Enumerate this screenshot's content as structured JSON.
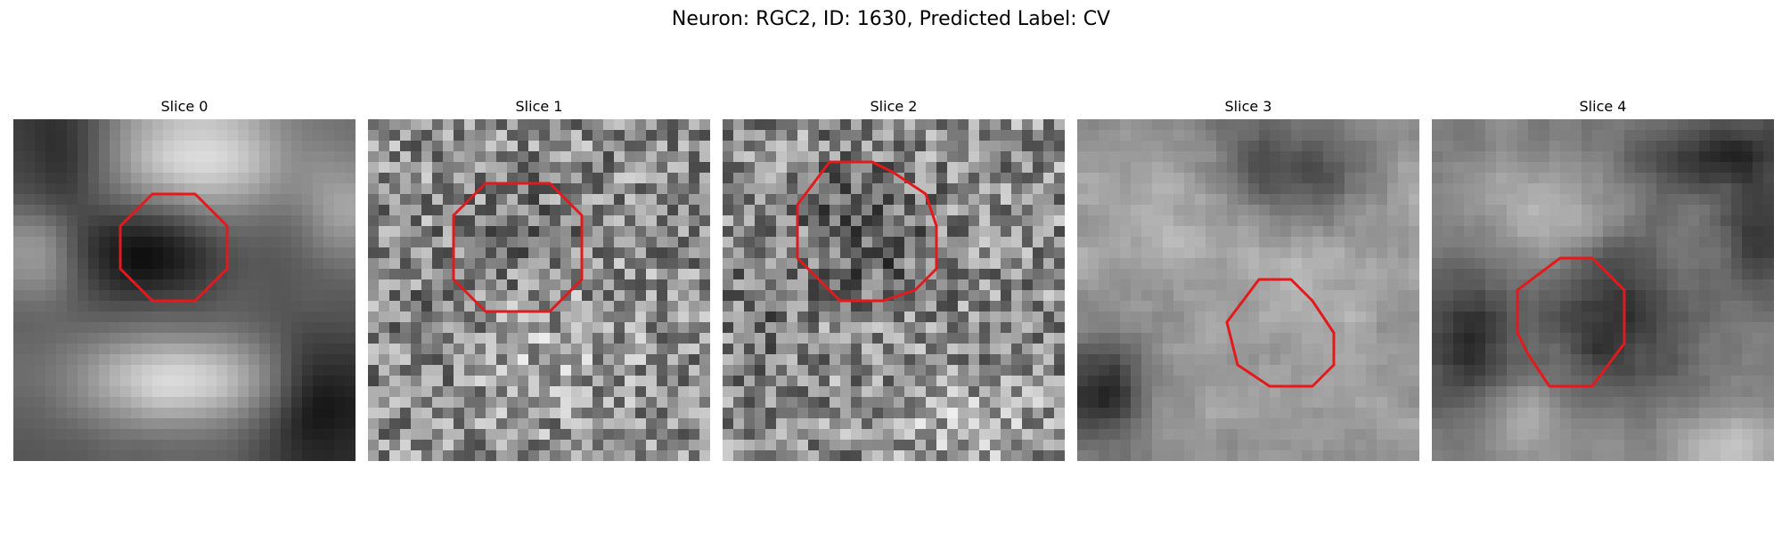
{
  "figure": {
    "title": "Neuron: RGC2, ID: 1630, Predicted Label: CV"
  },
  "panels": [
    {
      "title": "Slice 0",
      "content": "grayscale microscopy image patch with red octagonal contour"
    },
    {
      "title": "Slice 1",
      "content": "grayscale microscopy image patch with red octagonal contour"
    },
    {
      "title": "Slice 2",
      "content": "grayscale microscopy image patch with red octagonal contour"
    },
    {
      "title": "Slice 3",
      "content": "grayscale microscopy image patch with red octagonal contour"
    },
    {
      "title": "Slice 4",
      "content": "grayscale microscopy image patch with red octagonal contour"
    }
  ],
  "colors": {
    "contour": "#e31a1c",
    "background": "#ffffff"
  }
}
